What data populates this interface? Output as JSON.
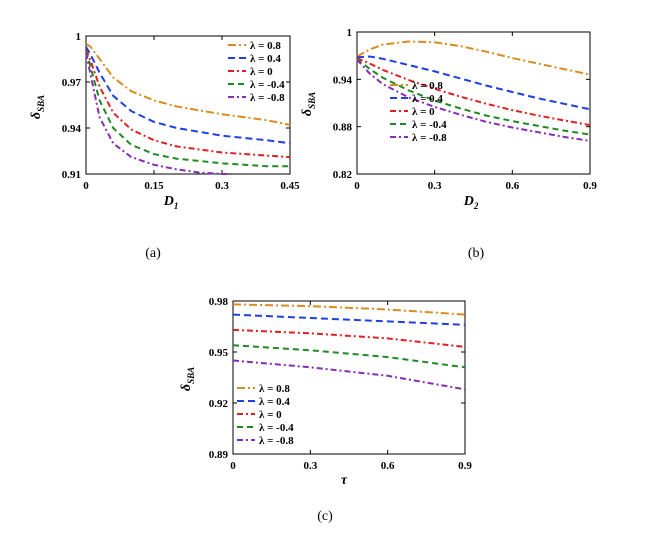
{
  "colors": {
    "lambda_0.8": "#D98C1F",
    "lambda_0.4": "#1E3FE6",
    "lambda_0": "#E02020",
    "lambda_-0.4": "#1F8A1F",
    "lambda_-0.8": "#8A2BB8"
  },
  "chart_data": [
    {
      "type": "line",
      "caption": "(a)",
      "ylabel": "δ",
      "ylabel_sub": "SBA",
      "xlabel": "D",
      "xlabel_sub": "1",
      "xlim": [
        0,
        0.45
      ],
      "ylim": [
        0.91,
        1
      ],
      "xticks": [
        "0",
        "0.15",
        "0.3",
        "0.45"
      ],
      "yticks": [
        "0.91",
        "0.94",
        "0.97",
        "1"
      ],
      "legend_position": "top-right",
      "series": [
        {
          "name": "λ = 0.8",
          "x": [
            0,
            0.01,
            0.03,
            0.06,
            0.1,
            0.15,
            0.2,
            0.3,
            0.4,
            0.45
          ],
          "y": [
            0.995,
            0.993,
            0.985,
            0.973,
            0.964,
            0.958,
            0.954,
            0.949,
            0.945,
            0.942
          ]
        },
        {
          "name": "λ = 0.4",
          "x": [
            0,
            0.01,
            0.03,
            0.06,
            0.1,
            0.15,
            0.2,
            0.3,
            0.4,
            0.45
          ],
          "y": [
            0.993,
            0.988,
            0.976,
            0.961,
            0.951,
            0.944,
            0.94,
            0.935,
            0.932,
            0.93
          ]
        },
        {
          "name": "λ = 0",
          "x": [
            0,
            0.01,
            0.03,
            0.06,
            0.1,
            0.15,
            0.2,
            0.3,
            0.4,
            0.45
          ],
          "y": [
            0.991,
            0.984,
            0.967,
            0.95,
            0.939,
            0.932,
            0.928,
            0.924,
            0.922,
            0.921
          ]
        },
        {
          "name": "λ = -0.4",
          "x": [
            0,
            0.01,
            0.03,
            0.06,
            0.1,
            0.15,
            0.2,
            0.3,
            0.4,
            0.45
          ],
          "y": [
            0.99,
            0.98,
            0.958,
            0.94,
            0.929,
            0.923,
            0.92,
            0.917,
            0.915,
            0.915
          ]
        },
        {
          "name": "λ = -0.8",
          "x": [
            0,
            0.01,
            0.03,
            0.06,
            0.1,
            0.15,
            0.2,
            0.25,
            0.3,
            0.32
          ],
          "y": [
            0.989,
            0.975,
            0.947,
            0.93,
            0.921,
            0.916,
            0.913,
            0.911,
            0.91,
            0.91
          ]
        }
      ]
    },
    {
      "type": "line",
      "caption": "(b)",
      "ylabel": "δ",
      "ylabel_sub": "SBA",
      "xlabel": "D",
      "xlabel_sub": "2",
      "xlim": [
        0,
        0.9
      ],
      "ylim": [
        0.82,
        1
      ],
      "xticks": [
        "0",
        "0.3",
        "0.6",
        "0.9"
      ],
      "yticks": [
        "0.82",
        "0.88",
        "0.94",
        "1"
      ],
      "legend_position": "middle-left",
      "series": [
        {
          "name": "λ = 0.8",
          "x": [
            0,
            0.05,
            0.1,
            0.2,
            0.3,
            0.4,
            0.5,
            0.6,
            0.7,
            0.8,
            0.9
          ],
          "y": [
            0.969,
            0.978,
            0.984,
            0.988,
            0.987,
            0.982,
            0.975,
            0.967,
            0.96,
            0.953,
            0.946
          ]
        },
        {
          "name": "λ = 0.4",
          "x": [
            0,
            0.05,
            0.1,
            0.2,
            0.3,
            0.4,
            0.5,
            0.6,
            0.7,
            0.8,
            0.9
          ],
          "y": [
            0.968,
            0.969,
            0.966,
            0.958,
            0.95,
            0.941,
            0.932,
            0.924,
            0.916,
            0.909,
            0.902
          ]
        },
        {
          "name": "λ = 0",
          "x": [
            0,
            0.05,
            0.1,
            0.2,
            0.3,
            0.4,
            0.5,
            0.6,
            0.7,
            0.8,
            0.9
          ],
          "y": [
            0.967,
            0.96,
            0.952,
            0.939,
            0.928,
            0.918,
            0.909,
            0.901,
            0.894,
            0.888,
            0.882
          ]
        },
        {
          "name": "λ = -0.4",
          "x": [
            0,
            0.05,
            0.1,
            0.2,
            0.3,
            0.4,
            0.5,
            0.6,
            0.7,
            0.8,
            0.9
          ],
          "y": [
            0.966,
            0.953,
            0.942,
            0.926,
            0.913,
            0.903,
            0.894,
            0.887,
            0.881,
            0.875,
            0.87
          ]
        },
        {
          "name": "λ = -0.8",
          "x": [
            0,
            0.05,
            0.1,
            0.2,
            0.3,
            0.4,
            0.5,
            0.6,
            0.7,
            0.8,
            0.9
          ],
          "y": [
            0.965,
            0.947,
            0.934,
            0.917,
            0.905,
            0.895,
            0.886,
            0.879,
            0.873,
            0.867,
            0.862
          ]
        }
      ]
    },
    {
      "type": "line",
      "caption": "(c)",
      "ylabel": "δ",
      "ylabel_sub": "SBA",
      "xlabel": "τ",
      "xlabel_sub": "",
      "xlim": [
        0,
        0.9
      ],
      "ylim": [
        0.89,
        0.98
      ],
      "xticks": [
        "0",
        "0.3",
        "0.6",
        "0.9"
      ],
      "yticks": [
        "0.89",
        "0.92",
        "0.95",
        "0.98"
      ],
      "legend_position": "bottom-left",
      "series": [
        {
          "name": "λ = 0.8",
          "x": [
            0,
            0.3,
            0.6,
            0.9
          ],
          "y": [
            0.978,
            0.977,
            0.975,
            0.972
          ]
        },
        {
          "name": "λ = 0.4",
          "x": [
            0,
            0.3,
            0.6,
            0.9
          ],
          "y": [
            0.972,
            0.97,
            0.968,
            0.966
          ]
        },
        {
          "name": "λ = 0",
          "x": [
            0,
            0.3,
            0.6,
            0.9
          ],
          "y": [
            0.963,
            0.961,
            0.958,
            0.953
          ]
        },
        {
          "name": "λ = -0.4",
          "x": [
            0,
            0.3,
            0.6,
            0.9
          ],
          "y": [
            0.954,
            0.951,
            0.947,
            0.941
          ]
        },
        {
          "name": "λ = -0.8",
          "x": [
            0,
            0.3,
            0.6,
            0.9
          ],
          "y": [
            0.945,
            0.941,
            0.936,
            0.928
          ]
        }
      ]
    }
  ]
}
